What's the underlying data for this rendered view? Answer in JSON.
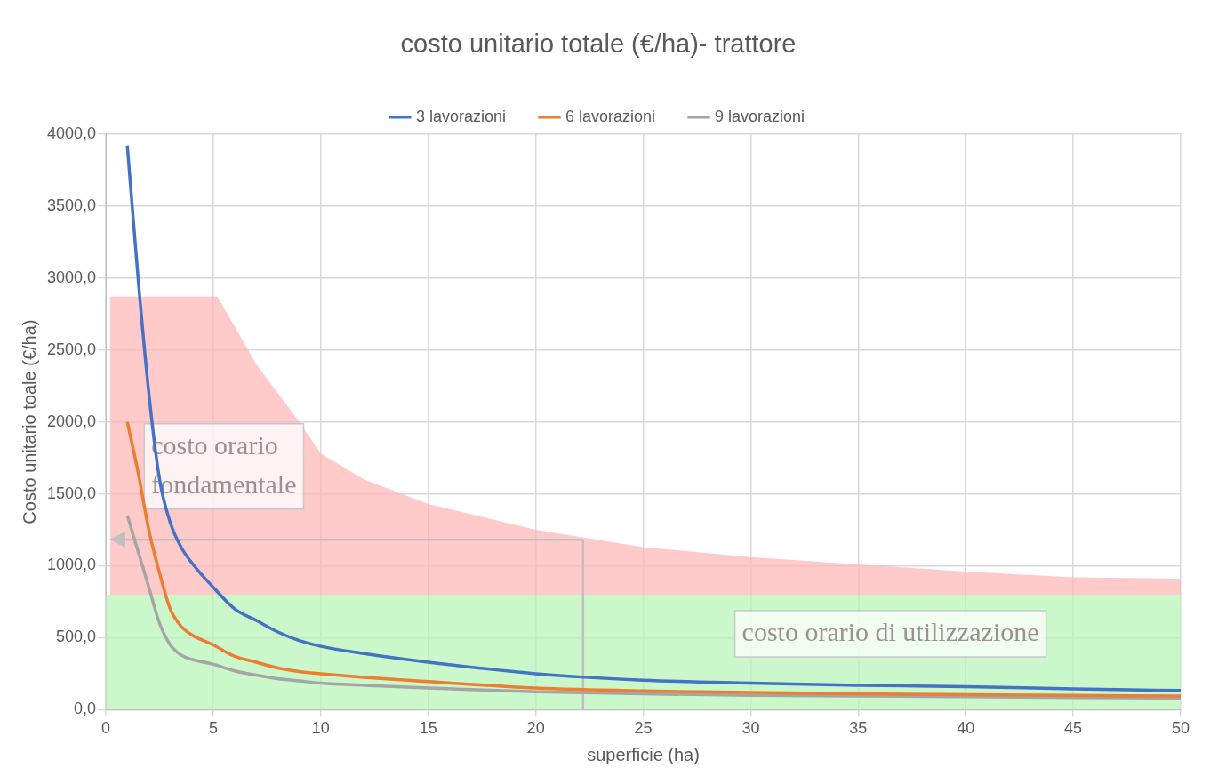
{
  "chart_data": {
    "type": "line",
    "title": "costo unitario totale (€/ha)- trattore",
    "xlabel": "superficie (ha)",
    "ylabel": "Costo unitario toale (€/ha)",
    "xlim": [
      0,
      50
    ],
    "xticks": [
      0,
      5,
      10,
      15,
      20,
      25,
      30,
      35,
      40,
      45,
      50
    ],
    "ylim": [
      0,
      4000
    ],
    "yticks": [
      {
        "value": 0,
        "label": "0,0"
      },
      {
        "value": 500,
        "label": "500,0"
      },
      {
        "value": 1000,
        "label": "1000,0"
      },
      {
        "value": 1500,
        "label": "1500,0"
      },
      {
        "value": 2000,
        "label": "2000,0"
      },
      {
        "value": 2500,
        "label": "2500,0"
      },
      {
        "value": 3000,
        "label": "3000,0"
      },
      {
        "value": 3500,
        "label": "3500,0"
      },
      {
        "value": 4000,
        "label": "4000,0"
      }
    ],
    "grid": true,
    "legend": "top",
    "marker": "none",
    "line_style": "solid",
    "x": [
      1,
      1.5,
      2,
      2.5,
      3,
      3.5,
      4,
      5,
      6,
      7,
      8,
      9,
      10,
      12,
      15,
      20,
      25,
      30,
      35,
      40,
      45,
      50
    ],
    "series": [
      {
        "name": "3 lavorazioni",
        "color": "#4472c4",
        "values": [
          3920,
          3000,
          2200,
          1600,
          1300,
          1130,
          1020,
          850,
          700,
          620,
          540,
          480,
          440,
          390,
          330,
          250,
          205,
          185,
          170,
          160,
          145,
          133
        ]
      },
      {
        "name": "6 lavorazioni",
        "color": "#ed7d31",
        "values": [
          2000,
          1650,
          1250,
          950,
          700,
          580,
          520,
          450,
          370,
          330,
          290,
          265,
          250,
          225,
          195,
          150,
          130,
          120,
          110,
          105,
          100,
          95
        ]
      },
      {
        "name": "9 lavorazioni",
        "color": "#a5a5a5",
        "values": [
          1350,
          1100,
          850,
          600,
          450,
          380,
          350,
          315,
          270,
          240,
          215,
          200,
          185,
          170,
          150,
          125,
          110,
          100,
          95,
          90,
          85,
          80
        ]
      },
      {
        "type": "area",
        "name": "costo orario fondamentale",
        "color": "#ffb3b3",
        "x": [
          0.2,
          5.2,
          7,
          9,
          10,
          12,
          15,
          20,
          25,
          30,
          35,
          40,
          45,
          50
        ],
        "values": [
          2870,
          2870,
          2400,
          2000,
          1780,
          1600,
          1430,
          1250,
          1130,
          1060,
          1010,
          960,
          920,
          910
        ]
      }
    ],
    "bands": [
      {
        "axis": "y",
        "from": 0,
        "to": 800,
        "label": "costo orario di utilizzazione",
        "color": "#b3f5b3"
      }
    ],
    "ref_lines": [
      {
        "axis": "x",
        "value": 22.2,
        "color": "#c0c0c0"
      },
      {
        "axis": "y",
        "value": 1180,
        "color": "#c0c0c0"
      }
    ]
  }
}
